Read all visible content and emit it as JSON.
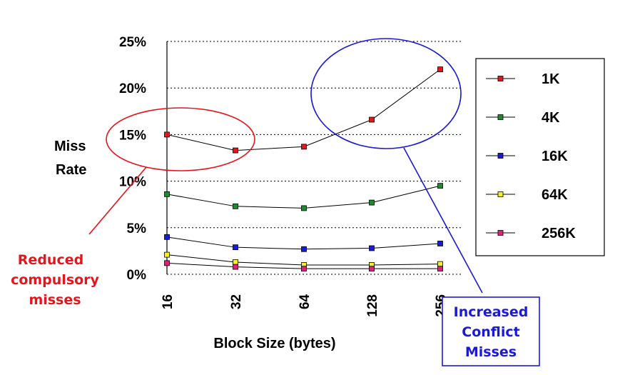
{
  "chart_data": {
    "type": "line",
    "categories": [
      "16",
      "32",
      "64",
      "128",
      "256"
    ],
    "xlabel": "Block Size (bytes)",
    "ylabel_lines": [
      "Miss",
      "Rate"
    ],
    "yticks": [
      "0%",
      "5%",
      "10%",
      "15%",
      "20%",
      "25%"
    ],
    "ylim": [
      0,
      25
    ],
    "grid": "horizontal dotted",
    "legend_placement": "right",
    "series": [
      {
        "name": "1K",
        "color": "#e8141c",
        "values": [
          15.0,
          13.3,
          13.7,
          16.6,
          22.0
        ]
      },
      {
        "name": "4K",
        "color": "#1a8c2e",
        "values": [
          8.6,
          7.3,
          7.1,
          7.7,
          9.5
        ]
      },
      {
        "name": "16K",
        "color": "#1a1ad6",
        "values": [
          4.0,
          2.9,
          2.7,
          2.8,
          3.3
        ]
      },
      {
        "name": "64K",
        "color": "#f7f020",
        "values": [
          2.1,
          1.3,
          1.0,
          1.0,
          1.1
        ]
      },
      {
        "name": "256K",
        "color": "#e0207a",
        "values": [
          1.2,
          0.8,
          0.6,
          0.6,
          0.6
        ]
      }
    ],
    "annotations": {
      "reduced": {
        "lines": [
          "Reduced",
          "compulsory",
          "misses"
        ],
        "color": "#e8141c"
      },
      "increased": {
        "lines": [
          "Increased",
          "Conflict",
          "Misses"
        ],
        "color": "#1a1ad6"
      }
    }
  }
}
